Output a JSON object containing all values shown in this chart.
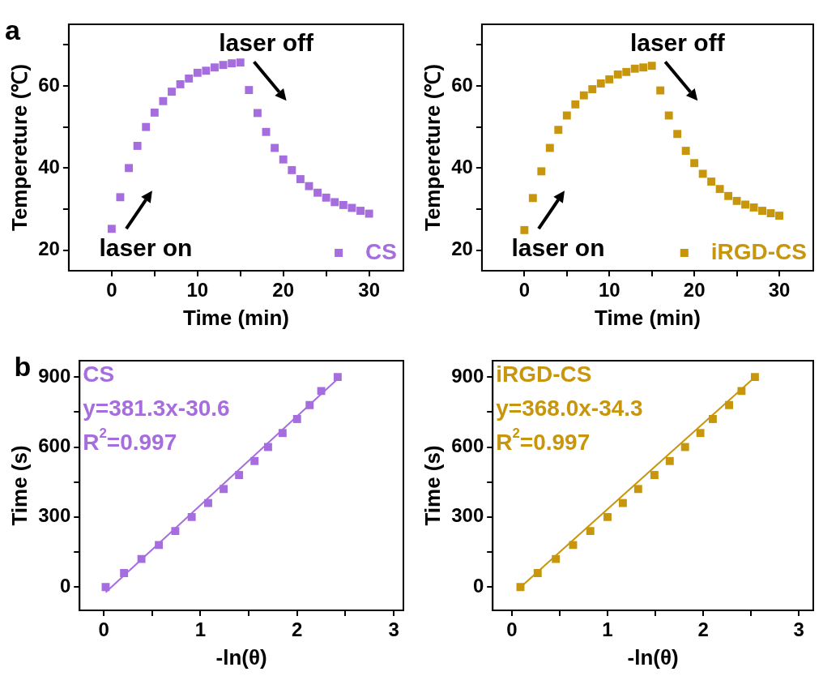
{
  "chart_data": [
    {
      "type": "scatter",
      "title": "a",
      "xlabel": "Time (min)",
      "ylabel": "Tempereture (℃)",
      "xlim": [
        -5,
        34
      ],
      "ylim": [
        15,
        75
      ],
      "xticks": [
        0,
        {
          "value": 5,
          "label": null
        },
        10,
        {
          "value": 15,
          "label": null
        },
        20,
        {
          "value": 25,
          "label": null
        },
        30
      ],
      "yticks": [
        20,
        {
          "value": 30,
          "label": null
        },
        40,
        {
          "value": 50,
          "label": null
        },
        60,
        {
          "value": 70,
          "label": null
        }
      ],
      "grid": false,
      "legend": "bottom right",
      "marker": "square",
      "annotations": [
        "laser on",
        "laser off"
      ],
      "series": [
        {
          "name": "CS",
          "type": "scatter",
          "color": "#a66ddf",
          "x": [
            0,
            1,
            2,
            3,
            4,
            5,
            6,
            7,
            8,
            9,
            10,
            11,
            12,
            13,
            14,
            15,
            16,
            17,
            18,
            19,
            20,
            21,
            22,
            23,
            24,
            25,
            26,
            27,
            28,
            29,
            30
          ],
          "values": [
            25.2,
            32.9,
            40.0,
            45.4,
            50.0,
            53.5,
            56.3,
            58.6,
            60.4,
            61.8,
            63.2,
            63.7,
            64.5,
            65.1,
            65.5,
            65.7,
            59.0,
            53.4,
            48.8,
            44.9,
            42.1,
            39.5,
            37.3,
            35.6,
            34.0,
            32.8,
            31.7,
            31.0,
            30.3,
            29.6,
            28.9
          ]
        }
      ]
    },
    {
      "type": "scatter",
      "xlabel": "Time (min)",
      "ylabel": "Tempereture (℃)",
      "xlim": [
        -5,
        34
      ],
      "ylim": [
        15,
        75
      ],
      "xticks": [
        0,
        {
          "value": 5,
          "label": null
        },
        10,
        {
          "value": 15,
          "label": null
        },
        20,
        {
          "value": 25,
          "label": null
        },
        30
      ],
      "yticks": [
        20,
        {
          "value": 30,
          "label": null
        },
        40,
        {
          "value": 50,
          "label": null
        },
        60,
        {
          "value": 70,
          "label": null
        }
      ],
      "grid": false,
      "legend": "bottom right",
      "marker": "square",
      "annotations": [
        "laser on",
        "laser off"
      ],
      "series": [
        {
          "name": "iRGD-CS",
          "type": "scatter",
          "color": "#c8960c",
          "x": [
            0,
            1,
            2,
            3,
            4,
            5,
            6,
            7,
            8,
            9,
            10,
            11,
            12,
            13,
            14,
            15,
            16,
            17,
            18,
            19,
            20,
            21,
            22,
            23,
            24,
            25,
            26,
            27,
            28,
            29,
            30
          ],
          "values": [
            24.9,
            32.7,
            39.2,
            44.9,
            49.3,
            52.8,
            55.5,
            57.7,
            59.2,
            60.6,
            61.6,
            62.8,
            63.4,
            64.2,
            64.5,
            64.9,
            58.9,
            52.8,
            48.3,
            44.2,
            41.2,
            38.6,
            36.7,
            34.9,
            33.2,
            32.0,
            31.1,
            30.4,
            29.6,
            29.0,
            28.4
          ]
        }
      ]
    },
    {
      "type": "scatter",
      "title": "b",
      "xlabel": "-ln(θ)",
      "ylabel": "Time (s)",
      "xlim": [
        -0.25,
        3.1
      ],
      "ylim": [
        -100,
        970
      ],
      "xticks": [
        0,
        {
          "value": 0.5,
          "label": null
        },
        1,
        {
          "value": 1.5,
          "label": null
        },
        2,
        {
          "value": 2.5,
          "label": null
        },
        3
      ],
      "yticks": [
        0,
        {
          "value": 150,
          "label": null
        },
        300,
        {
          "value": 450,
          "label": null
        },
        600,
        {
          "value": 750,
          "label": null
        },
        900
      ],
      "grid": false,
      "marker": "square",
      "annotations": [
        "y=381.3x-30.6",
        "R$^{2}$=0.997"
      ],
      "series": [
        {
          "name": "CS",
          "type": "scatter",
          "color": "#a66ddf",
          "x": [
            0.02,
            0.21,
            0.39,
            0.57,
            0.74,
            0.91,
            1.08,
            1.24,
            1.4,
            1.56,
            1.7,
            1.85,
            2.0,
            2.13,
            2.25,
            2.42
          ],
          "values": [
            0,
            60,
            120,
            180,
            240,
            300,
            360,
            420,
            480,
            540,
            600,
            660,
            720,
            780,
            840,
            900
          ]
        },
        {
          "type": "line",
          "marker": "none",
          "color": "#a66ddf",
          "x": [
            0.02,
            2.42
          ],
          "values": [
            -23,
            892
          ]
        }
      ]
    },
    {
      "type": "scatter",
      "xlabel": "-ln(θ)",
      "ylabel": "Time (s)",
      "xlim": [
        -0.2,
        3.15
      ],
      "ylim": [
        -100,
        970
      ],
      "xticks": [
        0,
        {
          "value": 0.5,
          "label": null
        },
        1,
        {
          "value": 1.5,
          "label": null
        },
        2,
        {
          "value": 2.5,
          "label": null
        },
        3
      ],
      "yticks": [
        0,
        {
          "value": 150,
          "label": null
        },
        300,
        {
          "value": 450,
          "label": null
        },
        600,
        {
          "value": 750,
          "label": null
        },
        900
      ],
      "grid": false,
      "marker": "square",
      "annotations": [
        "y=368.0x-34.3",
        "R$^{2}$=0.997"
      ],
      "series": [
        {
          "name": "iRGD-CS",
          "type": "scatter",
          "color": "#c8960c",
          "x": [
            0.09,
            0.27,
            0.46,
            0.64,
            0.82,
            1.0,
            1.16,
            1.32,
            1.49,
            1.65,
            1.81,
            1.97,
            2.1,
            2.27,
            2.4,
            2.54
          ],
          "values": [
            0,
            60,
            120,
            180,
            240,
            300,
            360,
            420,
            480,
            540,
            600,
            660,
            720,
            780,
            840,
            900
          ]
        },
        {
          "type": "line",
          "marker": "none",
          "color": "#c8960c",
          "x": [
            0.09,
            2.54
          ],
          "values": [
            -1,
            900
          ]
        }
      ]
    }
  ]
}
